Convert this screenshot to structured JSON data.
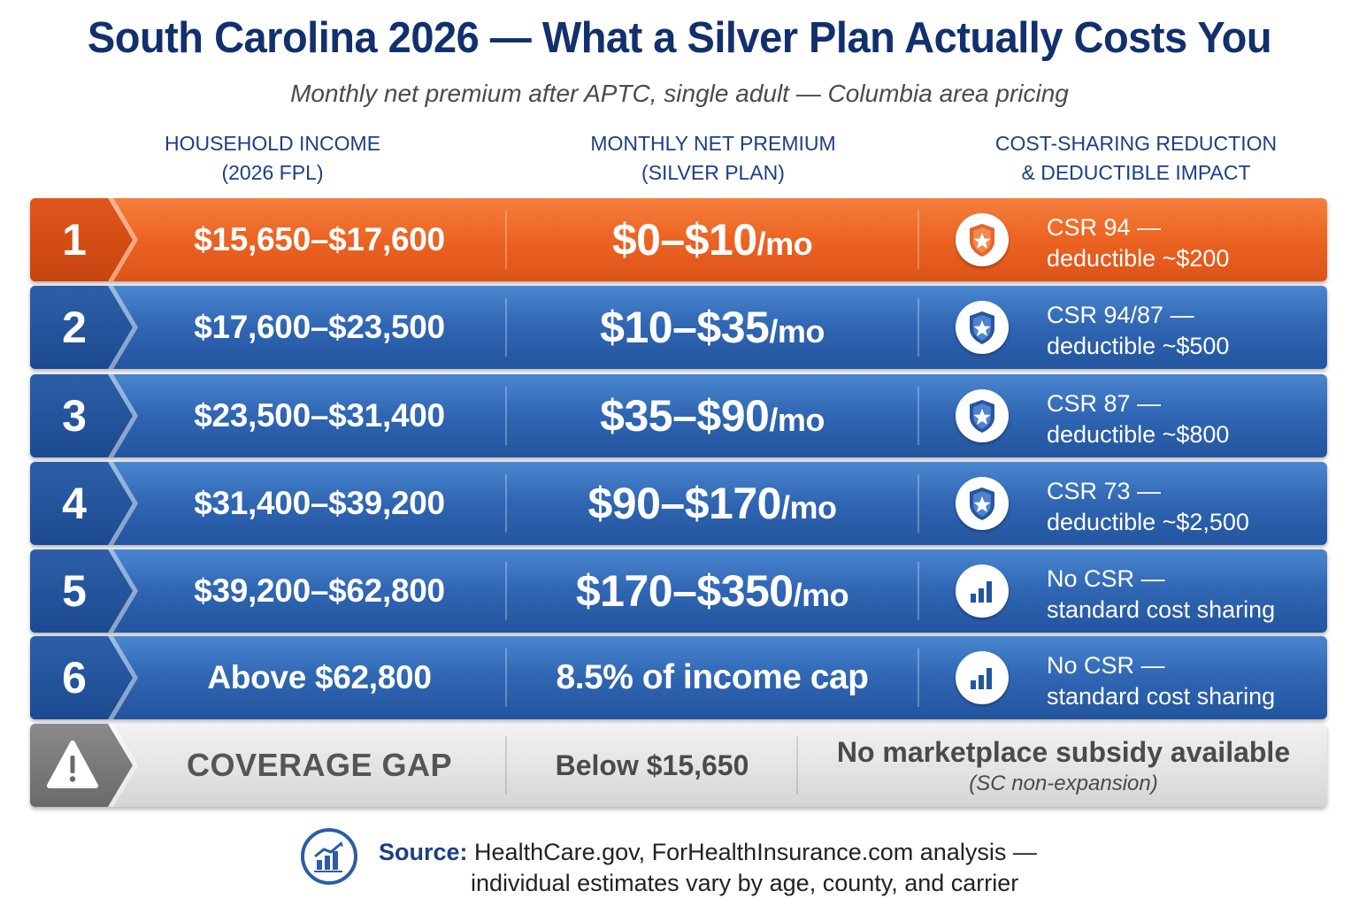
{
  "header": {
    "title": "South Carolina 2026 — What a Silver Plan Actually Costs You",
    "subtitle": "Monthly net premium after APTC, single adult — Columbia area pricing"
  },
  "columns": {
    "income": [
      "HOUSEHOLD INCOME",
      "(2026 FPL)"
    ],
    "premium": [
      "MONTHLY NET PREMIUM",
      "(SILVER PLAN)"
    ],
    "csr": [
      "COST-SHARING REDUCTION",
      "& DEDUCTIBLE IMPACT"
    ]
  },
  "rows": [
    {
      "num": "1",
      "income": "$15,650–$17,600",
      "premium": "$0–$10",
      "per": "/mo",
      "csr_line1": "CSR 94 —",
      "csr_line2": "deductible ~$200",
      "icon": "shield-star-icon",
      "color": "#ec6322"
    },
    {
      "num": "2",
      "income": "$17,600–$23,500",
      "premium": "$10–$35",
      "per": "/mo",
      "csr_line1": "CSR 94/87 —",
      "csr_line2": "deductible ~$500",
      "icon": "shield-star-icon",
      "color": "#2f65b2"
    },
    {
      "num": "3",
      "income": "$23,500–$31,400",
      "premium": "$35–$90",
      "per": "/mo",
      "csr_line1": "CSR 87 —",
      "csr_line2": "deductible ~$800",
      "icon": "shield-star-icon",
      "color": "#2f65b2"
    },
    {
      "num": "4",
      "income": "$31,400–$39,200",
      "premium": "$90–$170",
      "per": "/mo",
      "csr_line1": "CSR 73 —",
      "csr_line2": "deductible ~$2,500",
      "icon": "shield-star-icon",
      "color": "#2f65b2"
    },
    {
      "num": "5",
      "income": "$39,200–$62,800",
      "premium": "$170–$350",
      "per": "/mo",
      "csr_line1": "No CSR —",
      "csr_line2": "standard cost sharing",
      "icon": "bar-chart-icon",
      "color": "#2f65b2"
    },
    {
      "num": "6",
      "income": "Above $62,800",
      "premium": "8.5% of income cap",
      "per": "",
      "csr_line1": "No CSR —",
      "csr_line2": "standard cost sharing",
      "icon": "bar-chart-icon",
      "color": "#2f65b2"
    }
  ],
  "gap_row": {
    "icon": "warning-icon",
    "label": "COVERAGE GAP",
    "premium": "Below $15,650",
    "note_line1": "No marketplace subsidy available",
    "note_line2": "(SC non-expansion)"
  },
  "footer": {
    "icon": "chart-growth-icon",
    "label": "Source:",
    "line1": "HealthCare.gov, ForHealthInsurance.com analysis —",
    "line2": "individual estimates vary by age, county, and carrier"
  }
}
